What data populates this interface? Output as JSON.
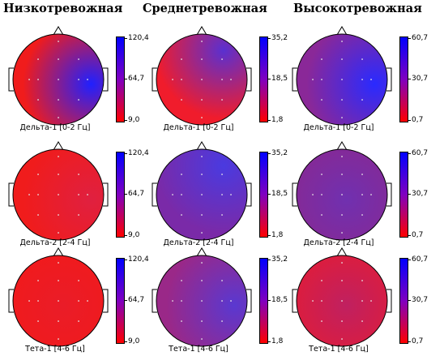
{
  "column_titles": [
    "Низкотревожная",
    "Среднетревожная",
    "Высокотревожная"
  ],
  "chart_data": [
    {
      "type": "heatmap",
      "group": "Низкотревожная",
      "band": "Дельта-1  [0-2 Гц]",
      "scale": {
        "max": "120,4",
        "mid": "64,7",
        "min": "9,0"
      },
      "colors": {
        "base": "#f01c1c",
        "hot": "#2020ff",
        "hot_pos": "right"
      }
    },
    {
      "type": "heatmap",
      "group": "Среднетревожная",
      "band": "Дельта-1  [0-2 Гц]",
      "scale": {
        "max": "35,2",
        "mid": "18,5",
        "min": "1,8"
      },
      "colors": {
        "base": "#f01c2c",
        "hot": "#5a30d0",
        "hot_pos": "top-right"
      }
    },
    {
      "type": "heatmap",
      "group": "Высокотревожная",
      "band": "Дельта-1  [0-2 Гц]",
      "scale": {
        "max": "60,7",
        "mid": "30,7",
        "min": "0,7"
      },
      "colors": {
        "base": "#8a2898",
        "hot": "#2a2aff",
        "hot_pos": "right"
      }
    },
    {
      "type": "heatmap",
      "group": "Низкотревожная",
      "band": "Дельта-2  [2-4 Гц]",
      "scale": {
        "max": "120,4",
        "mid": "64,7",
        "min": "9,0"
      },
      "colors": {
        "base": "#f01c1c",
        "hot": "#e02040",
        "hot_pos": "right"
      }
    },
    {
      "type": "heatmap",
      "group": "Среднетревожная",
      "band": "Дельта-2  [2-4 Гц]",
      "scale": {
        "max": "35,2",
        "mid": "18,5",
        "min": "1,8"
      },
      "colors": {
        "base": "#7a2aa8",
        "hot": "#4a3ae0",
        "hot_pos": "top-right"
      }
    },
    {
      "type": "heatmap",
      "group": "Высокотревожная",
      "band": "Дельта-2  [2-4 Гц]",
      "scale": {
        "max": "60,7",
        "mid": "30,7",
        "min": "0,7"
      },
      "colors": {
        "base": "#8a2890",
        "hot": "#7030b0",
        "hot_pos": "center"
      }
    },
    {
      "type": "heatmap",
      "group": "Низкотревожная",
      "band": "Тета-1  [4-6 Гц]",
      "scale": {
        "max": "120,4",
        "mid": "64,7",
        "min": "9,0"
      },
      "colors": {
        "base": "#f21a1a",
        "hot": "#ea1c28",
        "hot_pos": "center"
      }
    },
    {
      "type": "heatmap",
      "group": "Среднетревожная",
      "band": "Тета-1  [4-6 Гц]",
      "scale": {
        "max": "35,2",
        "mid": "18,5",
        "min": "1,8"
      },
      "colors": {
        "base": "#9a2888",
        "hot": "#5a38d0",
        "hot_pos": "right"
      }
    },
    {
      "type": "heatmap",
      "group": "Высокотревожная",
      "band": "Тета-1  [4-6 Гц]",
      "scale": {
        "max": "60,7",
        "mid": "30,7",
        "min": "0,7"
      },
      "colors": {
        "base": "#e41c34",
        "hot": "#c02060",
        "hot_pos": "center"
      }
    }
  ]
}
